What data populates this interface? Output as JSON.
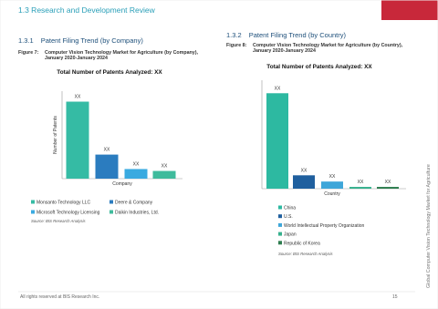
{
  "header": {
    "section": "1.3 Research and Development Review",
    "side_title": "Global Computer Vision Technology Market for Agriculture"
  },
  "footer": {
    "rights": "All rights reserved at BIS Research Inc.",
    "page": "15"
  },
  "chart_data": [
    {
      "type": "bar",
      "subsection": "1.3.1",
      "subsection_title": "Patent Filing Trend (by Company)",
      "figure_label": "Figure 7:",
      "caption": "Computer Vision Technology Market for Agriculture (by Company), January 2020-January 2024",
      "title": "Total Number of Patents Analyzed: XX",
      "x_label": "Company",
      "y_label": "Number of Patents",
      "categories": [
        "Monsanto Technology LLC",
        "Deere & Company",
        "Microsoft Technology Licensing",
        "Daikin Industries, Ltd."
      ],
      "values": [
        80,
        25,
        10,
        8
      ],
      "value_labels": [
        "XX",
        "XX",
        "XX",
        "XX"
      ],
      "colors": [
        "#35bba4",
        "#2b7cbf",
        "#3aaae0",
        "#3fbb9c"
      ],
      "source": "Source: BIS Research Analysis"
    },
    {
      "type": "bar",
      "subsection": "1.3.2",
      "subsection_title": "Patent Filing Trend (by Country)",
      "figure_label": "Figure 8:",
      "caption": "Computer Vision Technology Market for Agriculture (by Country), January 2020-January 2024",
      "title": "Total Number of Patents Analyzed: XX",
      "x_label": "Country",
      "categories": [
        "China",
        "U.S.",
        "World Intellectual Property Organization",
        "Japan",
        "Republic of Korea"
      ],
      "values": [
        107,
        15,
        8,
        2,
        2
      ],
      "value_labels": [
        "XX",
        "XX",
        "XX",
        "XX",
        "XX"
      ],
      "colors": [
        "#2db9a1",
        "#1f5f9e",
        "#3ea6d9",
        "#36b08d",
        "#2e7d4f"
      ],
      "source": "Source: BIS Research Analysis"
    }
  ]
}
